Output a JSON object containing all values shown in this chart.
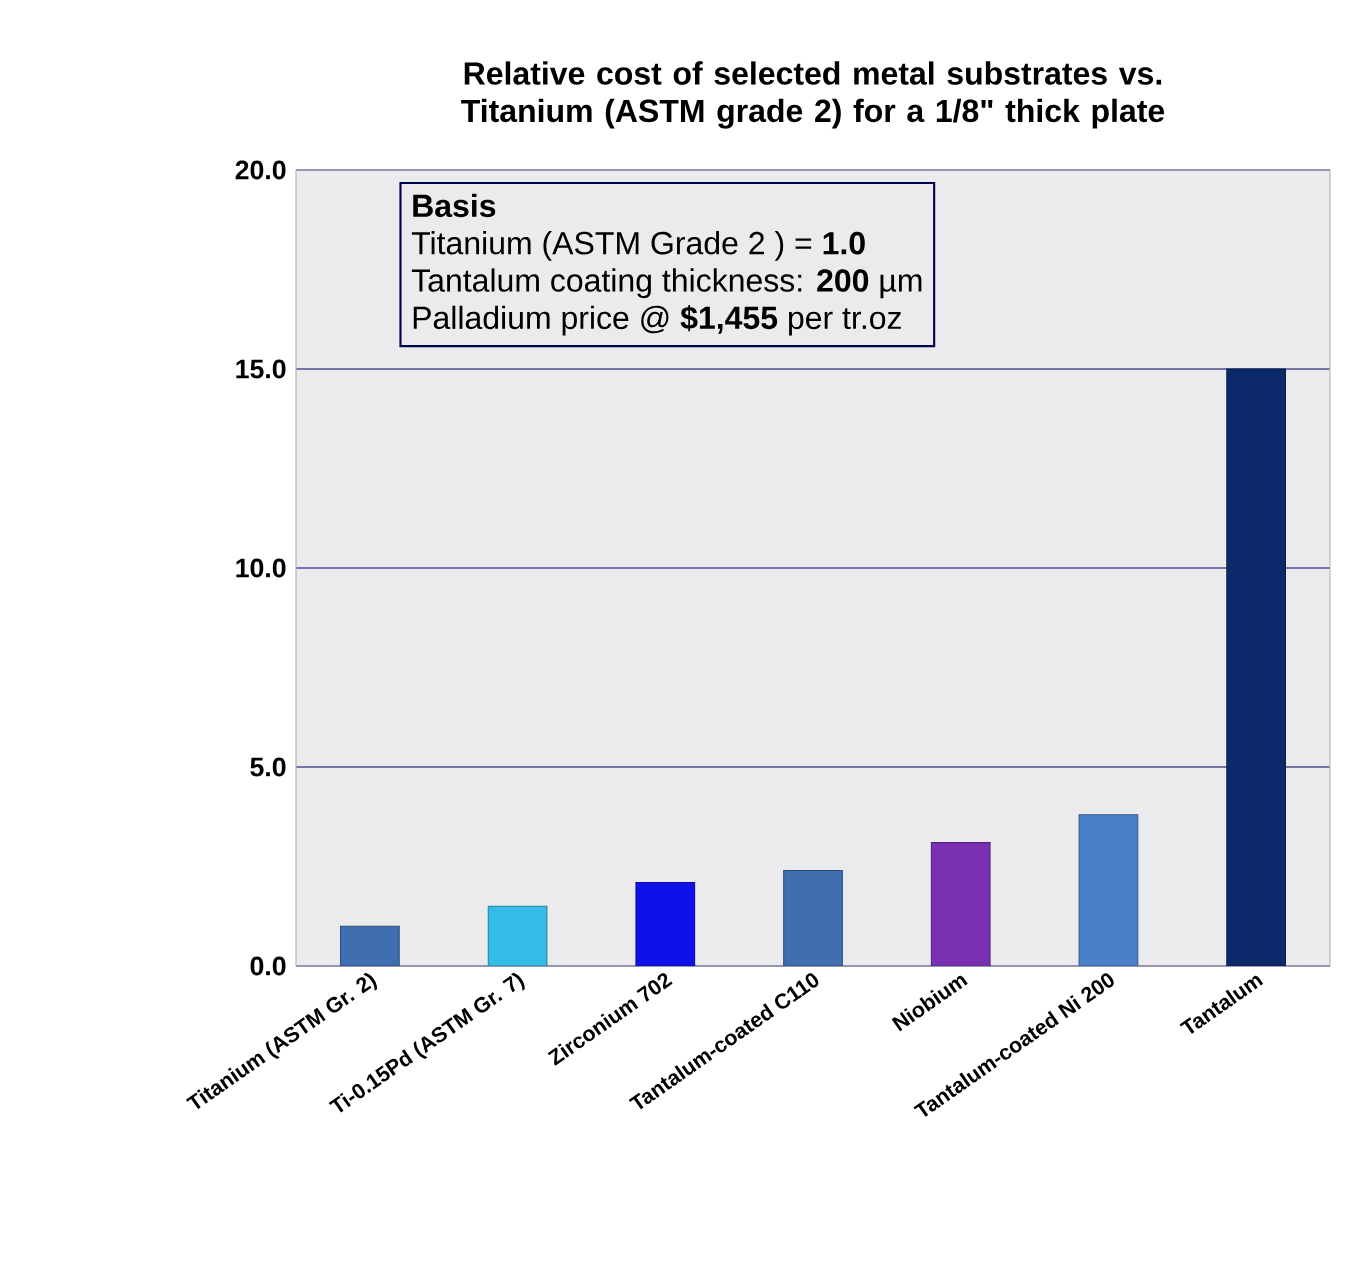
{
  "chart_data": {
    "type": "bar",
    "title": "Relative cost of selected metal substrates vs. Titanium (ASTM grade 2) for a 1/8\" thick plate",
    "categories": [
      "Titanium (ASTM Gr. 2)",
      "Ti-0.15Pd (ASTM Gr. 7)",
      "Zirconium 702",
      "Tantalum-coated C110",
      "Niobium",
      "Tantalum-coated Ni 200",
      "Tantalum"
    ],
    "values": [
      1.0,
      1.5,
      2.1,
      2.4,
      3.1,
      3.8,
      15.0
    ],
    "colors": [
      "#3f6fb0",
      "#33bde6",
      "#1010e8",
      "#3f6fb0",
      "#7a30b0",
      "#4a80c8",
      "#0c2a6a"
    ],
    "ylim": [
      0,
      20
    ],
    "yticks": [
      {
        "value": 0,
        "label": "0.0"
      },
      {
        "value": 5,
        "label": "5.0"
      },
      {
        "value": 10,
        "label": "10.0"
      },
      {
        "value": 15,
        "label": "15.0"
      },
      {
        "value": 20,
        "label": "20.0"
      }
    ],
    "grid": "y",
    "annotations": [
      "Basis",
      "Titanium  (ASTM Grade 2 ) = **1.0**",
      "Tantalum coating thickness: **200** µm",
      "Palladium price @ **$1,455** per tr.oz"
    ]
  }
}
